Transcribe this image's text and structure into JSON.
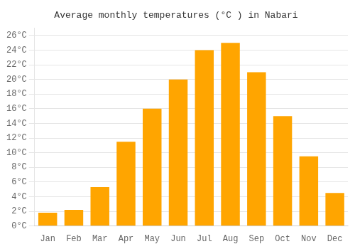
{
  "chart_data": {
    "type": "bar",
    "title": "Average monthly temperatures (°C ) in Nabari",
    "categories": [
      "Jan",
      "Feb",
      "Mar",
      "Apr",
      "May",
      "Jun",
      "Jul",
      "Aug",
      "Sep",
      "Oct",
      "Nov",
      "Dec"
    ],
    "values": [
      1.8,
      2.2,
      5.3,
      11.5,
      16.0,
      20.0,
      24.0,
      25.0,
      21.0,
      15.0,
      9.5,
      4.5
    ],
    "color": "#FFA500",
    "ylim": [
      0,
      27
    ],
    "yticks": [
      {
        "value": 0,
        "label": "0°C"
      },
      {
        "value": 2,
        "label": "2°C"
      },
      {
        "value": 4,
        "label": "4°C"
      },
      {
        "value": 6,
        "label": "6°C"
      },
      {
        "value": 8,
        "label": "8°C"
      },
      {
        "value": 10,
        "label": "10°C"
      },
      {
        "value": 12,
        "label": "12°C"
      },
      {
        "value": 14,
        "label": "14°C"
      },
      {
        "value": 16,
        "label": "16°C"
      },
      {
        "value": 18,
        "label": "18°C"
      },
      {
        "value": 20,
        "label": "20°C"
      },
      {
        "value": 22,
        "label": "22°C"
      },
      {
        "value": 24,
        "label": "24°C"
      },
      {
        "value": 26,
        "label": "26°C"
      }
    ],
    "grid": true
  }
}
